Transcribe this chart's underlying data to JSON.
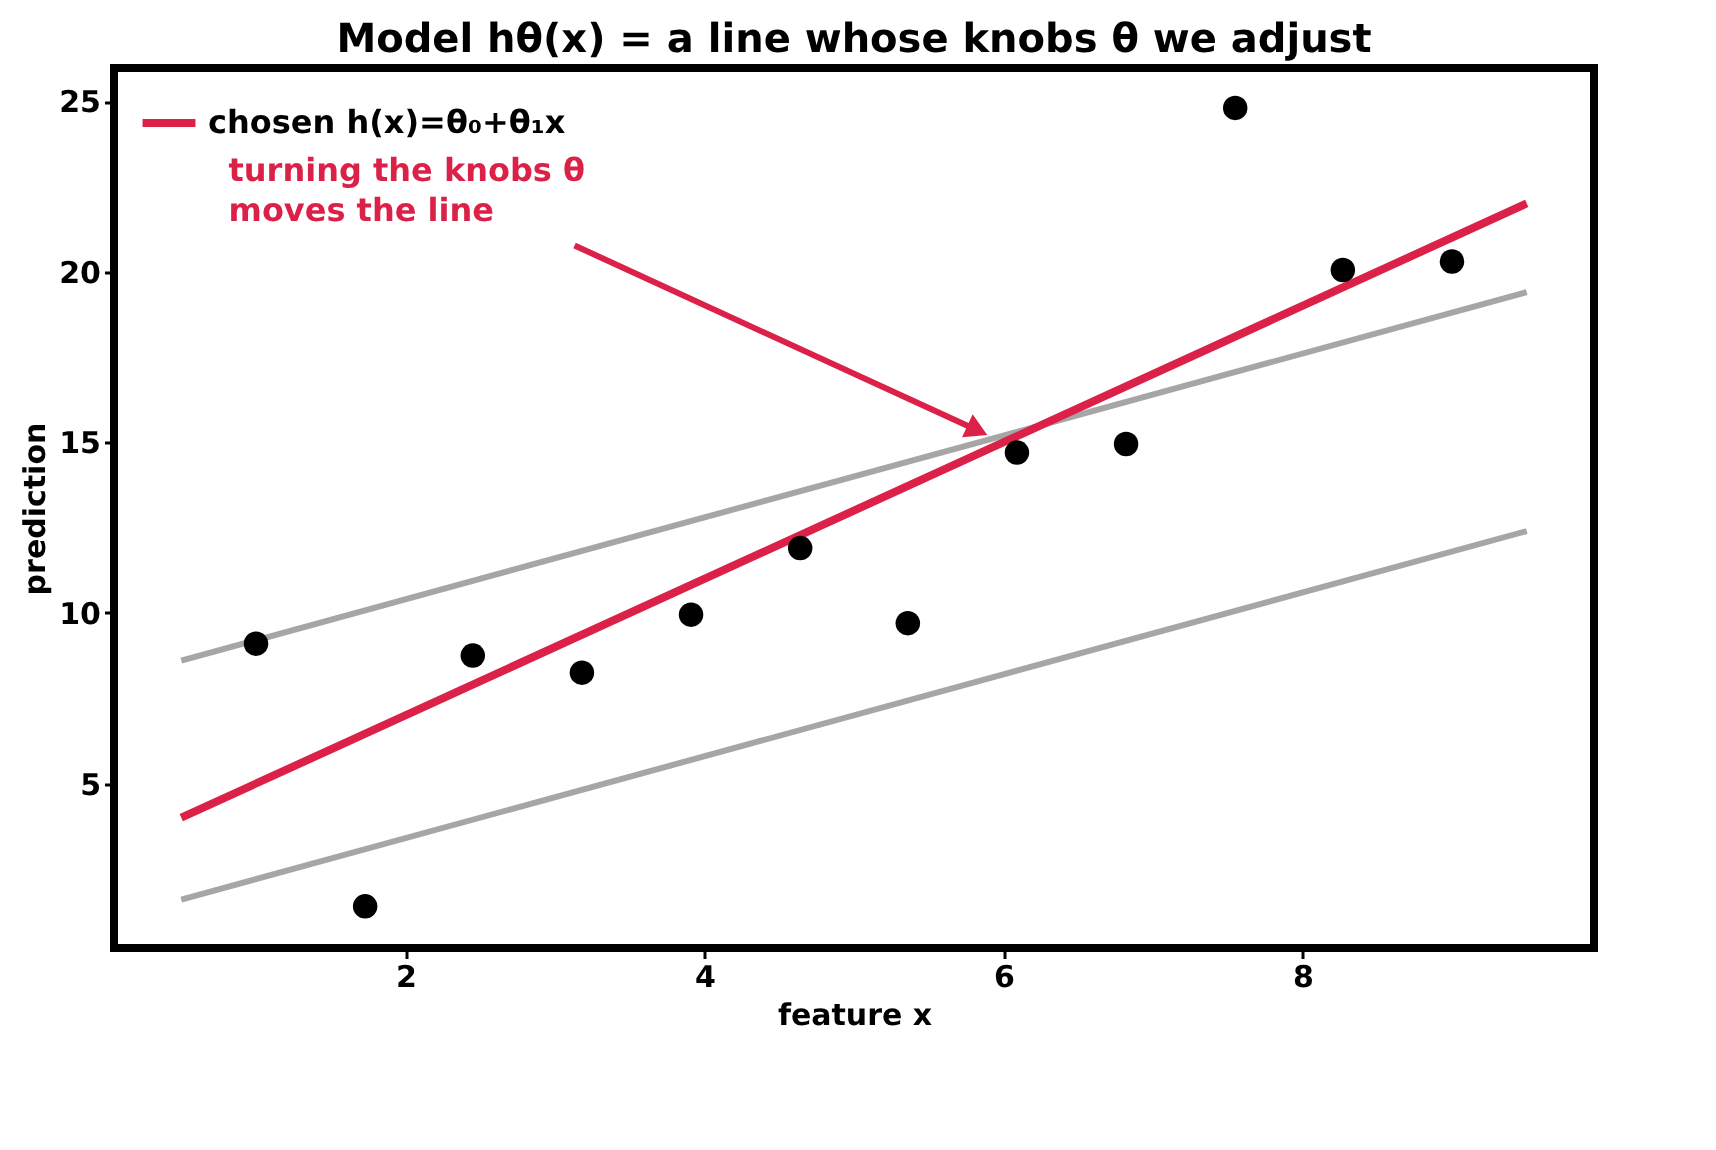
{
  "chart_data": {
    "type": "scatter",
    "title": "Model hθ(x) = a line whose knobs θ we adjust",
    "xlabel": "feature  x",
    "ylabel": "prediction",
    "xlim": [
      0.05,
      9.95
    ],
    "ylim": [
      0.18,
      25.97
    ],
    "xticks": [
      2,
      4,
      6,
      8
    ],
    "yticks": [
      5,
      10,
      15,
      20,
      25
    ],
    "grid": false,
    "legend": "top left",
    "series": [
      {
        "type": "line",
        "color": "#a6a6a6",
        "x": [
          0.5,
          9.5
        ],
        "values": [
          8.6,
          19.4
        ]
      },
      {
        "type": "line",
        "color": "#a6a6a6",
        "x": [
          0.5,
          9.5
        ],
        "values": [
          1.6,
          12.4
        ]
      },
      {
        "type": "line",
        "name": "chosen  h(x)=θ₀+θ₁x",
        "color": "#dc2149",
        "x": [
          0.5,
          9.5
        ],
        "values": [
          4.0,
          22.0
        ]
      },
      {
        "color": "#000000",
        "marker": "circle",
        "x": [
          1.0,
          1.73,
          2.45,
          3.18,
          3.91,
          4.64,
          5.36,
          6.09,
          6.82,
          7.55,
          8.27,
          9.0
        ],
        "values": [
          9.1,
          1.4,
          8.75,
          8.25,
          9.95,
          11.9,
          9.7,
          14.7,
          14.95,
          24.8,
          20.05,
          20.3
        ]
      }
    ],
    "annotations": [
      {
        "text": "turning the knobs θ\nmoves the line",
        "x": 5.9,
        "y": 15.2
      }
    ]
  }
}
